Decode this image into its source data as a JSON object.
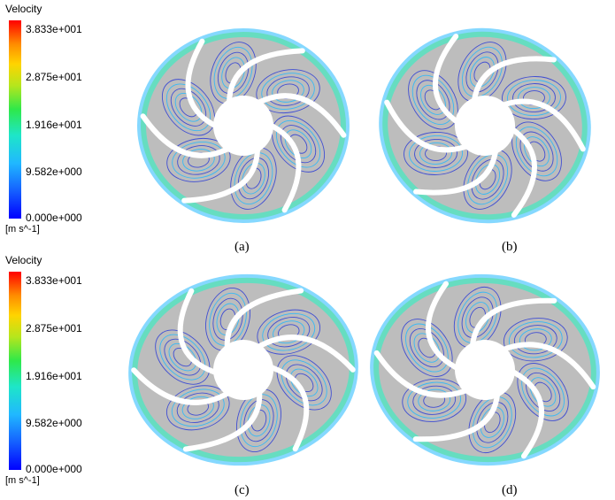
{
  "legends": [
    {
      "title": "Velocity",
      "ticks": [
        "3.833e+001",
        "2.875e+001",
        "1.916e+001",
        "9.582e+000",
        "0.000e+000"
      ],
      "unit": "[m s^-1]"
    },
    {
      "title": "Velocity",
      "ticks": [
        "3.833e+001",
        "2.875e+001",
        "1.916e+001",
        "9.582e+000",
        "0.000e+000"
      ],
      "unit": "[m s^-1]"
    }
  ],
  "panels": [
    {
      "caption": "(a)"
    },
    {
      "caption": "(b)"
    },
    {
      "caption": "(c)"
    },
    {
      "caption": "(d)"
    }
  ],
  "colors": {
    "streamline": "#2a3bd6",
    "fluid_gray": "#bdbdbd",
    "blade": "#ffffff",
    "high_speed": "#2ee84a",
    "mid_speed": "#20b8ff"
  }
}
